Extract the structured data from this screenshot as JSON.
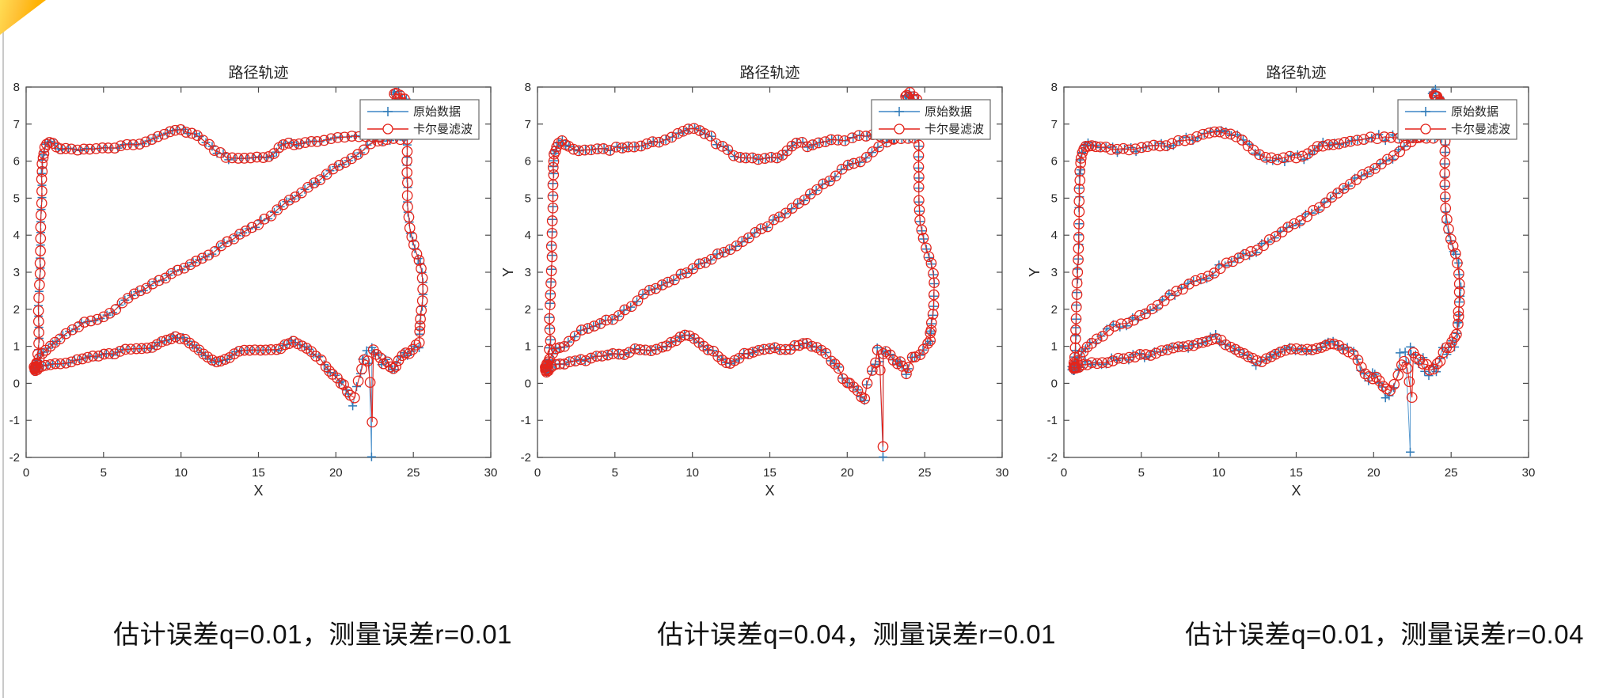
{
  "page": {
    "background": "#ffffff",
    "edge_line_color": "#c9c9c9",
    "corner_triangle_color": "#ffb203"
  },
  "chart_data": {
    "type": "line",
    "title": "路径轨迹",
    "xlabel": "X",
    "ylabel": "Y",
    "xlim": [
      0,
      30
    ],
    "ylim": [
      -2,
      8
    ],
    "xticks": [
      0,
      5,
      10,
      15,
      20,
      25,
      30
    ],
    "yticks": [
      -2,
      -1,
      0,
      1,
      2,
      3,
      4,
      5,
      6,
      7,
      8
    ],
    "grid": false,
    "legend": {
      "position": "top-right",
      "entries": [
        {
          "label": "原始数据",
          "color": "#3d85c6",
          "marker": "plus"
        },
        {
          "label": "卡尔曼滤波",
          "color": "#e3241b",
          "marker": "circle"
        }
      ]
    },
    "colors": {
      "blue_line": "#5b9bd0",
      "blue_marker": "#2e7ab8",
      "red": "#e3241b",
      "axis": "#4d4d4d",
      "text": "#262626"
    },
    "path_xy": [
      [
        23.0,
        6.58
      ],
      [
        22.5,
        6.52
      ],
      [
        22.0,
        6.4
      ],
      [
        21.6,
        6.28
      ],
      [
        21.2,
        6.12
      ],
      [
        20.8,
        6.02
      ],
      [
        20.4,
        5.92
      ],
      [
        20.0,
        5.84
      ],
      [
        19.6,
        5.72
      ],
      [
        19.2,
        5.6
      ],
      [
        18.8,
        5.48
      ],
      [
        18.4,
        5.34
      ],
      [
        18.0,
        5.22
      ],
      [
        17.6,
        5.1
      ],
      [
        17.2,
        4.98
      ],
      [
        16.8,
        4.86
      ],
      [
        16.4,
        4.72
      ],
      [
        16.0,
        4.58
      ],
      [
        15.6,
        4.48
      ],
      [
        15.2,
        4.38
      ],
      [
        14.8,
        4.26
      ],
      [
        14.4,
        4.12
      ],
      [
        14.0,
        4.02
      ],
      [
        13.6,
        3.94
      ],
      [
        13.2,
        3.84
      ],
      [
        12.8,
        3.74
      ],
      [
        12.4,
        3.62
      ],
      [
        12.0,
        3.52
      ],
      [
        11.6,
        3.46
      ],
      [
        11.2,
        3.38
      ],
      [
        10.8,
        3.28
      ],
      [
        10.4,
        3.2
      ],
      [
        10.0,
        3.12
      ],
      [
        9.6,
        3.0
      ],
      [
        9.2,
        2.9
      ],
      [
        8.8,
        2.8
      ],
      [
        8.4,
        2.72
      ],
      [
        8.0,
        2.64
      ],
      [
        7.6,
        2.56
      ],
      [
        7.2,
        2.46
      ],
      [
        6.8,
        2.36
      ],
      [
        6.4,
        2.24
      ],
      [
        6.0,
        2.08
      ],
      [
        5.6,
        1.94
      ],
      [
        5.2,
        1.84
      ],
      [
        4.8,
        1.76
      ],
      [
        4.4,
        1.7
      ],
      [
        4.0,
        1.64
      ],
      [
        3.6,
        1.58
      ],
      [
        3.2,
        1.5
      ],
      [
        2.8,
        1.4
      ],
      [
        2.4,
        1.28
      ],
      [
        2.0,
        1.13
      ],
      [
        1.7,
        1.03
      ],
      [
        1.4,
        0.95
      ],
      [
        1.15,
        0.88
      ],
      [
        0.95,
        0.78
      ],
      [
        0.75,
        0.62
      ],
      [
        0.6,
        0.48
      ],
      [
        0.52,
        0.36
      ],
      [
        0.62,
        0.3
      ],
      [
        0.75,
        0.38
      ],
      [
        0.62,
        0.5
      ],
      [
        0.55,
        0.42
      ],
      [
        0.72,
        0.62
      ],
      [
        0.78,
        0.92
      ],
      [
        0.82,
        1.22
      ],
      [
        0.8,
        1.52
      ],
      [
        0.78,
        1.82
      ],
      [
        0.82,
        2.12
      ],
      [
        0.85,
        2.45
      ],
      [
        0.88,
        2.78
      ],
      [
        0.9,
        3.1
      ],
      [
        0.92,
        3.42
      ],
      [
        0.93,
        3.75
      ],
      [
        0.95,
        4.08
      ],
      [
        0.96,
        4.4
      ],
      [
        0.98,
        4.72
      ],
      [
        1.0,
        5.05
      ],
      [
        1.0,
        5.35
      ],
      [
        1.02,
        5.62
      ],
      [
        1.04,
        5.85
      ],
      [
        1.06,
        6.02
      ],
      [
        1.1,
        6.18
      ],
      [
        1.16,
        6.3
      ],
      [
        1.25,
        6.42
      ],
      [
        1.4,
        6.52
      ],
      [
        1.6,
        6.55
      ],
      [
        1.82,
        6.48
      ],
      [
        2.05,
        6.38
      ],
      [
        2.35,
        6.33
      ],
      [
        2.7,
        6.31
      ],
      [
        3.1,
        6.3
      ],
      [
        3.5,
        6.32
      ],
      [
        3.9,
        6.31
      ],
      [
        4.3,
        6.32
      ],
      [
        4.7,
        6.33
      ],
      [
        5.1,
        6.35
      ],
      [
        5.5,
        6.38
      ],
      [
        5.9,
        6.4
      ],
      [
        6.3,
        6.43
      ],
      [
        6.7,
        6.46
      ],
      [
        7.1,
        6.49
      ],
      [
        7.5,
        6.52
      ],
      [
        7.9,
        6.56
      ],
      [
        8.3,
        6.6
      ],
      [
        8.7,
        6.65
      ],
      [
        9.1,
        6.72
      ],
      [
        9.45,
        6.79
      ],
      [
        9.8,
        6.85
      ],
      [
        10.15,
        6.83
      ],
      [
        10.5,
        6.77
      ],
      [
        10.85,
        6.7
      ],
      [
        11.2,
        6.62
      ],
      [
        11.6,
        6.5
      ],
      [
        12.0,
        6.38
      ],
      [
        12.35,
        6.25
      ],
      [
        12.7,
        6.15
      ],
      [
        13.1,
        6.08
      ],
      [
        13.5,
        6.05
      ],
      [
        13.9,
        6.04
      ],
      [
        14.3,
        6.04
      ],
      [
        14.7,
        6.06
      ],
      [
        15.1,
        6.08
      ],
      [
        15.5,
        6.1
      ],
      [
        15.85,
        6.14
      ],
      [
        16.15,
        6.24
      ],
      [
        16.45,
        6.4
      ],
      [
        16.75,
        6.5
      ],
      [
        17.1,
        6.48
      ],
      [
        17.45,
        6.43
      ],
      [
        17.8,
        6.43
      ],
      [
        18.2,
        6.47
      ],
      [
        18.6,
        6.51
      ],
      [
        19.0,
        6.55
      ],
      [
        19.45,
        6.58
      ],
      [
        19.9,
        6.6
      ],
      [
        20.35,
        6.63
      ],
      [
        20.8,
        6.65
      ],
      [
        21.25,
        6.66
      ],
      [
        21.7,
        6.67
      ],
      [
        22.15,
        6.66
      ],
      [
        22.6,
        6.64
      ],
      [
        23.05,
        6.62
      ],
      [
        23.5,
        6.6
      ],
      [
        23.95,
        6.6
      ],
      [
        24.35,
        6.62
      ],
      [
        24.52,
        6.85
      ],
      [
        24.5,
        7.2
      ],
      [
        24.42,
        7.5
      ],
      [
        24.28,
        7.72
      ],
      [
        24.05,
        7.82
      ],
      [
        23.82,
        7.85
      ],
      [
        23.75,
        7.72
      ],
      [
        24.0,
        7.68
      ],
      [
        24.28,
        7.7
      ],
      [
        24.5,
        7.6
      ],
      [
        24.58,
        7.35
      ],
      [
        24.6,
        7.05
      ],
      [
        24.6,
        6.75
      ],
      [
        24.6,
        6.45
      ],
      [
        24.6,
        6.15
      ],
      [
        24.6,
        5.85
      ],
      [
        24.6,
        5.55
      ],
      [
        24.62,
        5.25
      ],
      [
        24.63,
        4.95
      ],
      [
        24.66,
        4.65
      ],
      [
        24.72,
        4.38
      ],
      [
        24.82,
        4.1
      ],
      [
        24.95,
        3.85
      ],
      [
        25.12,
        3.62
      ],
      [
        25.3,
        3.42
      ],
      [
        25.45,
        3.2
      ],
      [
        25.55,
        2.95
      ],
      [
        25.6,
        2.68
      ],
      [
        25.6,
        2.4
      ],
      [
        25.57,
        2.12
      ],
      [
        25.5,
        1.86
      ],
      [
        25.44,
        1.62
      ],
      [
        25.4,
        1.44
      ],
      [
        25.42,
        1.26
      ],
      [
        25.33,
        1.08
      ],
      [
        25.12,
        0.98
      ],
      [
        24.88,
        0.92
      ],
      [
        24.62,
        0.85
      ],
      [
        24.38,
        0.78
      ],
      [
        24.15,
        0.64
      ],
      [
        23.96,
        0.5
      ],
      [
        23.8,
        0.36
      ],
      [
        23.6,
        0.4
      ],
      [
        23.4,
        0.5
      ],
      [
        23.18,
        0.58
      ],
      [
        22.95,
        0.62
      ],
      [
        22.72,
        0.68
      ],
      [
        22.5,
        0.76
      ],
      [
        22.34,
        0.88
      ],
      [
        22.25,
        -1.9
      ],
      [
        22.12,
        0.62
      ],
      [
        21.94,
        0.86
      ],
      [
        21.75,
        0.62
      ],
      [
        21.55,
        0.33
      ],
      [
        21.3,
        -0.08
      ],
      [
        21.05,
        -0.5
      ],
      [
        20.85,
        -0.3
      ],
      [
        20.65,
        -0.08
      ],
      [
        20.42,
        0.03
      ],
      [
        20.18,
        0.07
      ],
      [
        19.95,
        0.1
      ],
      [
        19.7,
        0.22
      ],
      [
        19.45,
        0.4
      ],
      [
        19.2,
        0.54
      ],
      [
        18.9,
        0.68
      ],
      [
        18.6,
        0.8
      ],
      [
        18.3,
        0.9
      ],
      [
        18.0,
        0.96
      ],
      [
        17.7,
        1.02
      ],
      [
        17.4,
        1.07
      ],
      [
        17.1,
        1.11
      ],
      [
        16.85,
        1.07
      ],
      [
        16.6,
        1.0
      ],
      [
        16.3,
        0.93
      ],
      [
        16.0,
        0.9
      ],
      [
        15.65,
        0.92
      ],
      [
        15.3,
        0.93
      ],
      [
        14.95,
        0.93
      ],
      [
        14.6,
        0.92
      ],
      [
        14.25,
        0.9
      ],
      [
        13.9,
        0.88
      ],
      [
        13.6,
        0.84
      ],
      [
        13.3,
        0.78
      ],
      [
        13.0,
        0.68
      ],
      [
        12.7,
        0.58
      ],
      [
        12.42,
        0.54
      ],
      [
        12.15,
        0.58
      ],
      [
        11.88,
        0.68
      ],
      [
        11.6,
        0.78
      ],
      [
        11.3,
        0.88
      ],
      [
        11.0,
        0.96
      ],
      [
        10.7,
        1.04
      ],
      [
        10.4,
        1.12
      ],
      [
        10.1,
        1.2
      ],
      [
        9.8,
        1.25
      ],
      [
        9.5,
        1.26
      ],
      [
        9.2,
        1.23
      ],
      [
        8.9,
        1.17
      ],
      [
        8.6,
        1.1
      ],
      [
        8.3,
        1.04
      ],
      [
        8.0,
        0.99
      ],
      [
        7.65,
        0.95
      ],
      [
        7.3,
        0.92
      ],
      [
        6.95,
        0.92
      ],
      [
        6.6,
        0.94
      ],
      [
        6.25,
        0.9
      ],
      [
        5.9,
        0.85
      ],
      [
        5.55,
        0.81
      ],
      [
        5.2,
        0.78
      ],
      [
        4.85,
        0.75
      ],
      [
        4.5,
        0.73
      ],
      [
        4.15,
        0.71
      ],
      [
        3.8,
        0.69
      ],
      [
        3.45,
        0.67
      ],
      [
        3.1,
        0.63
      ],
      [
        2.75,
        0.6
      ],
      [
        2.4,
        0.58
      ],
      [
        2.05,
        0.56
      ],
      [
        1.7,
        0.53
      ],
      [
        1.4,
        0.5
      ],
      [
        1.12,
        0.46
      ],
      [
        0.88,
        0.43
      ],
      [
        0.68,
        0.4
      ],
      [
        0.56,
        0.37
      ],
      [
        0.5,
        0.43
      ],
      [
        0.6,
        0.38
      ]
    ],
    "plots": [
      {
        "caption": "估计误差q=0.01，测量误差r=0.01",
        "q": 0.01,
        "r": 0.01,
        "show_ylabel": false
      },
      {
        "caption": "估计误差q=0.04，测量误差r=0.01",
        "q": 0.04,
        "r": 0.01,
        "show_ylabel": true
      },
      {
        "caption": "估计误差q=0.01，测量误差r=0.04",
        "q": 0.01,
        "r": 0.04,
        "show_ylabel": true
      }
    ]
  }
}
